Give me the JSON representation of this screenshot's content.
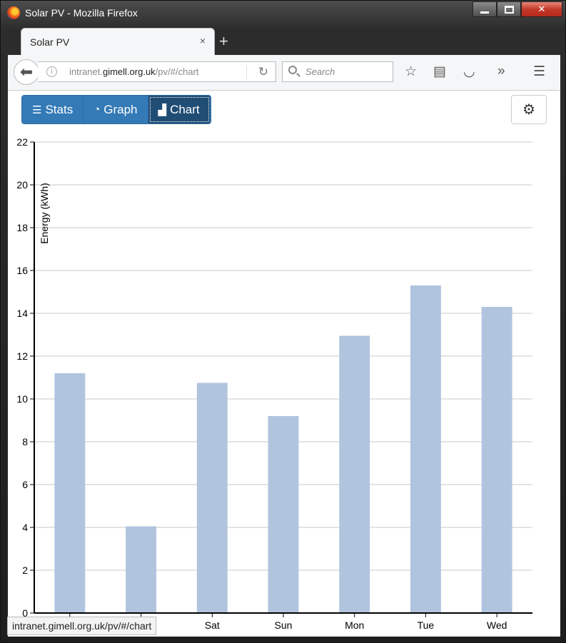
{
  "window": {
    "title": "Solar PV - Mozilla Firefox"
  },
  "tab": {
    "title": "Solar PV",
    "close_glyph": "×",
    "new_glyph": "+"
  },
  "navbar": {
    "url_prefix": "intranet.",
    "url_host": "gimell.org.uk",
    "url_path": "/pv/#/chart",
    "search_placeholder": "Search"
  },
  "toolbar": {
    "buttons": [
      {
        "label": "Stats",
        "icon": "list-icon",
        "glyph": "☰"
      },
      {
        "label": "Graph",
        "icon": "dashboard-icon",
        "glyph": "◔"
      },
      {
        "label": "Chart",
        "icon": "bar-chart-icon",
        "glyph": "▟",
        "active": true
      }
    ],
    "settings_icon": "gear-icon"
  },
  "status_url": "intranet.gimell.org.uk/pv/#/chart",
  "colors": {
    "bar": "#b0c4de",
    "accent": "#337ab7",
    "active": "#204d74"
  },
  "chart_data": {
    "type": "bar",
    "categories": [
      "",
      "",
      "Sat",
      "Sun",
      "Mon",
      "Tue",
      "Wed"
    ],
    "values": [
      11.2,
      4.05,
      10.75,
      9.2,
      12.95,
      15.3,
      14.3
    ],
    "ylabel": "Energy (kWh)",
    "ylim": [
      0,
      22
    ],
    "yticks": [
      0,
      2,
      4,
      6,
      8,
      10,
      12,
      14,
      16,
      18,
      20,
      22
    ],
    "grid": true
  }
}
